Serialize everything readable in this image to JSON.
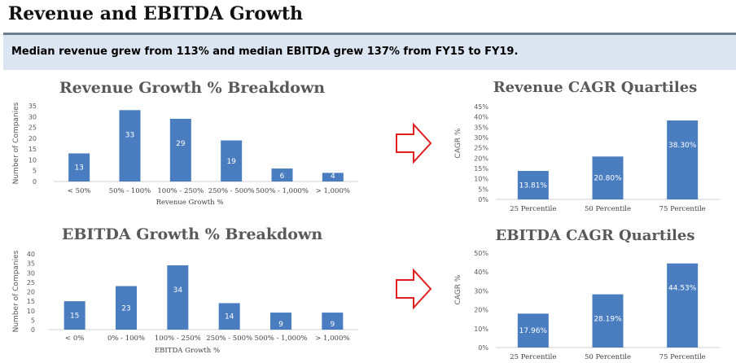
{
  "header": {
    "title": "Revenue and EBITDA Growth",
    "banner": "Median revenue grew from 113% and median EBITDA grew 137% from FY15 to FY19."
  },
  "colors": {
    "bar": "#4a7dc0",
    "arrow": "#e02020",
    "banner_bg": "#dce6f2"
  },
  "icons": [
    "arrow-right-icon",
    "arrow-right-icon"
  ],
  "chart_data": [
    {
      "type": "bar",
      "title": "Revenue Growth % Breakdown",
      "xlabel": "Revenue Growth %",
      "ylabel": "Number of Companies",
      "categories": [
        "< 50%",
        "50% - 100%",
        "100% - 250%",
        "250% - 500%",
        "500% - 1,000%",
        "> 1,000%"
      ],
      "values": [
        13,
        33,
        29,
        19,
        6,
        4
      ],
      "data_labels": [
        "13",
        "33",
        "29",
        "19",
        "6",
        "4"
      ],
      "ylim": [
        0,
        35
      ],
      "yticks": [
        "0",
        "5",
        "10",
        "15",
        "20",
        "25",
        "30",
        "35"
      ],
      "grid": false
    },
    {
      "type": "bar",
      "title": "EBITDA Growth % Breakdown",
      "xlabel": "EBITDA Growth %",
      "ylabel": "Number of Companies",
      "categories": [
        "< 0%",
        "0% - 100%",
        "100% - 250%",
        "250% - 500%",
        "500% - 1,000%",
        "> 1,000%"
      ],
      "values": [
        15,
        23,
        34,
        14,
        9,
        9
      ],
      "data_labels": [
        "15",
        "23",
        "34",
        "14",
        "9",
        "9"
      ],
      "ylim": [
        0,
        40
      ],
      "yticks": [
        "0",
        "5",
        "10",
        "15",
        "20",
        "25",
        "30",
        "35",
        "40"
      ],
      "grid": false
    },
    {
      "type": "bar",
      "title": "Revenue CAGR Quartiles",
      "xlabel": "",
      "ylabel": "CAGR %",
      "categories": [
        "25 Percentile",
        "50 Percentile",
        "75 Percentile"
      ],
      "values": [
        13.81,
        20.8,
        38.3
      ],
      "data_labels": [
        "13.81%",
        "20.80%",
        "38.30%"
      ],
      "ylim": [
        0,
        45
      ],
      "yticks": [
        "0%",
        "5%",
        "10%",
        "15%",
        "20%",
        "25%",
        "30%",
        "35%",
        "40%",
        "45%"
      ],
      "grid": false
    },
    {
      "type": "bar",
      "title": "EBITDA CAGR Quartiles",
      "xlabel": "",
      "ylabel": "CAGR %",
      "categories": [
        "25 Percentile",
        "50 Percentile",
        "75 Percentile"
      ],
      "values": [
        17.96,
        28.19,
        44.53
      ],
      "data_labels": [
        "17.96%",
        "28.19%",
        "44.53%"
      ],
      "ylim": [
        0,
        50
      ],
      "yticks": [
        "0%",
        "10%",
        "20%",
        "30%",
        "40%",
        "50%"
      ],
      "grid": false
    }
  ]
}
